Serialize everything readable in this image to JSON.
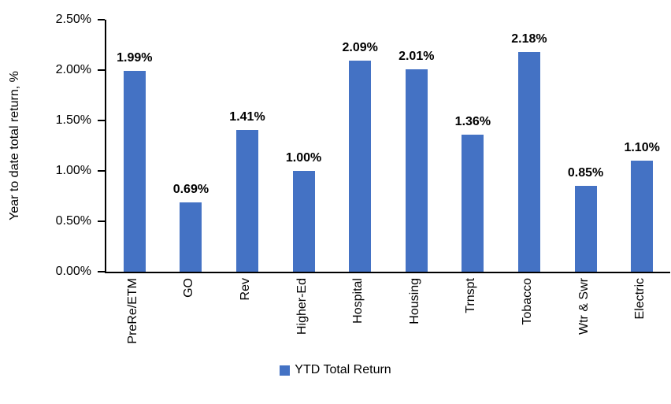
{
  "chart_data": {
    "type": "bar",
    "title": "",
    "categories": [
      "PreRe/ETM",
      "GO",
      "Rev",
      "Higher-Ed",
      "Hospital",
      "Housing",
      "Trnspt",
      "Tobacco",
      "Wtr & Swr",
      "Electric"
    ],
    "values": [
      1.99,
      0.69,
      1.41,
      1.0,
      2.09,
      2.01,
      1.36,
      2.18,
      0.85,
      1.1
    ],
    "value_labels": [
      "1.99%",
      "0.69%",
      "1.41%",
      "1.00%",
      "2.09%",
      "2.01%",
      "1.36%",
      "2.18%",
      "0.85%",
      "1.10%"
    ],
    "xlabel": "",
    "ylabel": "Year to date total return, %",
    "ylim": [
      0,
      2.5
    ],
    "yticks": [
      {
        "value": 0.0,
        "label": "0.00%"
      },
      {
        "value": 0.5,
        "label": "0.50%"
      },
      {
        "value": 1.0,
        "label": "1.00%"
      },
      {
        "value": 1.5,
        "label": "1.50%"
      },
      {
        "value": 2.0,
        "label": "2.00%"
      },
      {
        "value": 2.5,
        "label": "2.50%"
      }
    ],
    "grid": false,
    "legend_position": "bottom",
    "legend": [
      {
        "name": "YTD Total Return",
        "color": "#4472C4"
      }
    ],
    "bar_color": "#4472C4",
    "axis_color": "#000000"
  }
}
